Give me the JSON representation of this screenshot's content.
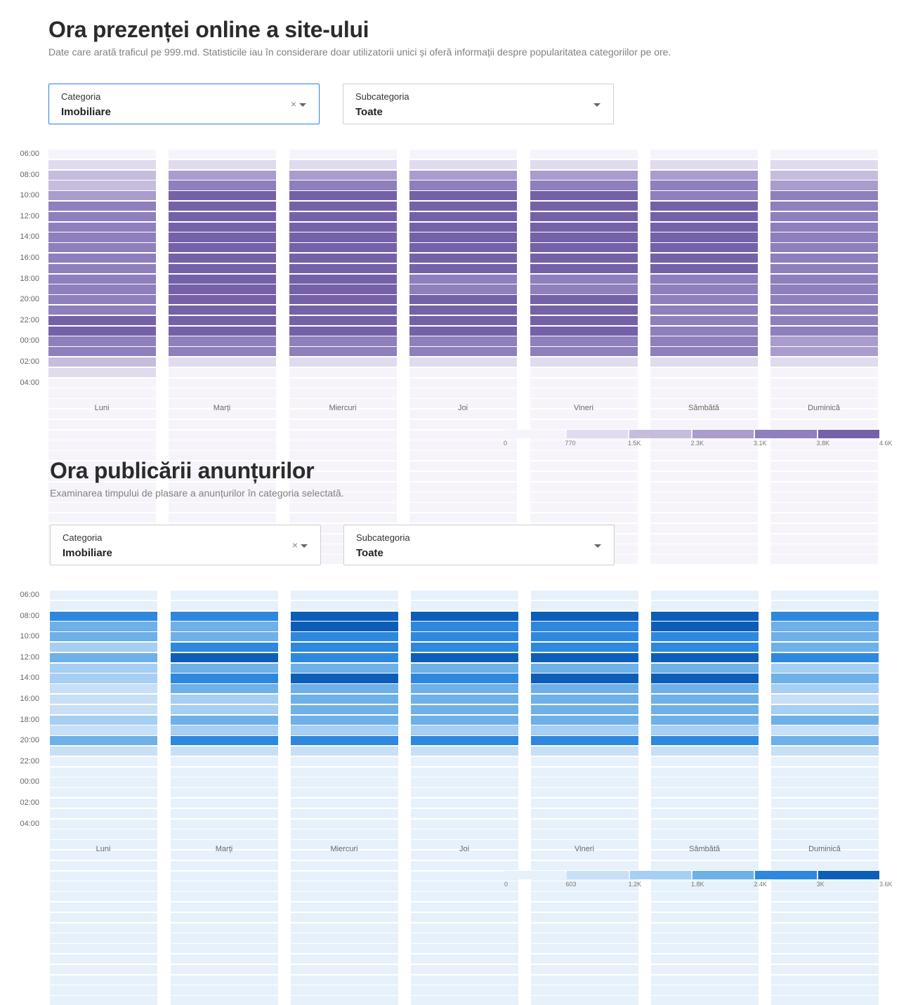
{
  "sections": [
    {
      "title": "Ora prezenței online a site-ului",
      "subtitle": "Date care arată traficul pe 999.md. Statisticile iau în considerare doar utilizatorii unici și oferă informații despre popularitatea categoriilor pe ore.",
      "category": {
        "label": "Categoria",
        "value": "Imobiliare",
        "clear_icon": "×"
      },
      "subcategory": {
        "label": "Subcategoria",
        "value": "Toate"
      },
      "hours": [
        "06:00",
        "08:00",
        "10:00",
        "12:00",
        "14:00",
        "16:00",
        "18:00",
        "20:00",
        "22:00",
        "00:00",
        "02:00",
        "04:00"
      ],
      "days": [
        "Luni",
        "Marți",
        "Miercuri",
        "Joi",
        "Vineri",
        "Sâmbătă",
        "Duminică"
      ],
      "palette": [
        "#f6f4fa",
        "#e0dbee",
        "#c6bddd",
        "#aa9ccd",
        "#8f7fbc",
        "#7561a8"
      ],
      "legend_ticks": [
        "0",
        "770",
        "1.5K",
        "2.3K",
        "3.1K",
        "3.8K",
        "4.6K"
      ],
      "grid": [
        [
          0,
          1,
          2,
          2,
          3,
          4,
          4,
          4,
          4,
          4,
          4,
          4,
          4,
          4,
          4,
          4,
          5,
          5,
          4,
          4,
          2,
          1,
          0,
          0,
          0,
          0,
          0,
          0,
          0,
          0,
          0,
          0,
          0,
          0,
          0,
          0,
          0,
          0,
          0,
          0
        ],
        [
          0,
          1,
          3,
          4,
          5,
          5,
          5,
          5,
          5,
          5,
          5,
          5,
          5,
          5,
          5,
          5,
          5,
          5,
          4,
          4,
          1,
          0,
          0,
          0,
          0,
          0,
          0,
          0,
          0,
          0,
          0,
          0,
          0,
          0,
          0,
          0,
          0,
          0,
          0,
          0
        ],
        [
          0,
          1,
          3,
          4,
          5,
          5,
          5,
          5,
          5,
          5,
          5,
          5,
          5,
          5,
          5,
          5,
          5,
          5,
          4,
          4,
          1,
          0,
          0,
          0,
          0,
          0,
          0,
          0,
          0,
          0,
          0,
          0,
          0,
          0,
          0,
          0,
          0,
          0,
          0,
          0
        ],
        [
          0,
          1,
          3,
          4,
          5,
          5,
          5,
          5,
          5,
          5,
          5,
          5,
          4,
          4,
          5,
          5,
          5,
          5,
          4,
          4,
          1,
          0,
          0,
          0,
          0,
          0,
          0,
          0,
          0,
          0,
          0,
          0,
          0,
          0,
          0,
          0,
          0,
          0,
          0,
          0
        ],
        [
          0,
          1,
          3,
          4,
          5,
          5,
          5,
          5,
          5,
          5,
          5,
          5,
          4,
          4,
          5,
          5,
          5,
          5,
          4,
          4,
          1,
          0,
          0,
          0,
          0,
          0,
          0,
          0,
          0,
          0,
          0,
          0,
          0,
          0,
          0,
          0,
          0,
          0,
          0,
          0
        ],
        [
          0,
          1,
          3,
          4,
          4,
          5,
          5,
          5,
          5,
          5,
          5,
          5,
          4,
          4,
          4,
          4,
          4,
          4,
          4,
          4,
          1,
          0,
          0,
          0,
          0,
          0,
          0,
          0,
          0,
          0,
          0,
          0,
          0,
          0,
          0,
          0,
          0,
          0,
          0,
          0
        ],
        [
          0,
          1,
          2,
          3,
          4,
          4,
          4,
          4,
          4,
          4,
          4,
          4,
          4,
          4,
          4,
          4,
          4,
          4,
          3,
          3,
          1,
          0,
          0,
          0,
          0,
          0,
          0,
          0,
          0,
          0,
          0,
          0,
          0,
          0,
          0,
          0,
          0,
          0,
          0,
          0
        ]
      ]
    },
    {
      "title": "Ora publicării anunțurilor",
      "subtitle": "Examinarea timpului de plasare a anunțurilor în categoria selectată.",
      "category": {
        "label": "Categoria",
        "value": "Imobiliare",
        "clear_icon": "×"
      },
      "subcategory": {
        "label": "Subcategoria",
        "value": "Toate"
      },
      "hours": [
        "06:00",
        "08:00",
        "10:00",
        "12:00",
        "14:00",
        "16:00",
        "18:00",
        "20:00",
        "22:00",
        "00:00",
        "02:00",
        "04:00"
      ],
      "days": [
        "Luni",
        "Marți",
        "Miercuri",
        "Joi",
        "Vineri",
        "Sâmbătă",
        "Duminică"
      ],
      "palette": [
        "#e6f1fb",
        "#c8e0f6",
        "#a5cff3",
        "#6eb0e8",
        "#2e88de",
        "#0d5eb8"
      ],
      "legend_ticks": [
        "0",
        "603",
        "1.2K",
        "1.8K",
        "2.4K",
        "3K",
        "3.6K"
      ],
      "grid": [
        [
          0,
          0,
          4,
          3,
          3,
          2,
          3,
          2,
          2,
          1,
          1,
          1,
          2,
          1,
          3,
          1,
          0,
          0,
          0,
          0,
          0,
          0,
          0,
          0,
          0,
          0,
          0,
          0,
          0,
          0,
          0,
          0,
          0,
          0,
          0,
          0,
          0,
          0,
          0,
          0
        ],
        [
          0,
          0,
          4,
          3,
          3,
          4,
          5,
          3,
          4,
          3,
          2,
          2,
          3,
          2,
          4,
          1,
          0,
          0,
          0,
          0,
          0,
          0,
          0,
          0,
          0,
          0,
          0,
          0,
          0,
          0,
          0,
          0,
          0,
          0,
          0,
          0,
          0,
          0,
          0,
          0
        ],
        [
          0,
          0,
          5,
          5,
          4,
          4,
          4,
          3,
          5,
          3,
          3,
          3,
          3,
          2,
          4,
          1,
          0,
          0,
          0,
          0,
          0,
          0,
          0,
          0,
          0,
          0,
          0,
          0,
          0,
          0,
          0,
          0,
          0,
          0,
          0,
          0,
          0,
          0,
          0,
          0
        ],
        [
          0,
          0,
          5,
          4,
          4,
          4,
          5,
          3,
          4,
          3,
          3,
          3,
          3,
          2,
          4,
          1,
          0,
          0,
          0,
          0,
          0,
          0,
          0,
          0,
          0,
          0,
          0,
          0,
          0,
          0,
          0,
          0,
          0,
          0,
          0,
          0,
          0,
          0,
          0,
          0
        ],
        [
          0,
          0,
          5,
          4,
          4,
          4,
          5,
          3,
          5,
          3,
          3,
          3,
          3,
          2,
          4,
          1,
          0,
          0,
          0,
          0,
          0,
          0,
          0,
          0,
          0,
          0,
          0,
          0,
          0,
          0,
          0,
          0,
          0,
          0,
          0,
          0,
          0,
          0,
          0,
          0
        ],
        [
          0,
          0,
          5,
          5,
          4,
          4,
          5,
          3,
          5,
          3,
          3,
          3,
          3,
          2,
          4,
          1,
          0,
          0,
          0,
          0,
          0,
          0,
          0,
          0,
          0,
          0,
          0,
          0,
          0,
          0,
          0,
          0,
          0,
          0,
          0,
          0,
          0,
          0,
          0,
          0
        ],
        [
          0,
          0,
          4,
          3,
          3,
          3,
          4,
          2,
          3,
          2,
          1,
          2,
          3,
          1,
          3,
          1,
          0,
          0,
          0,
          0,
          0,
          0,
          0,
          0,
          0,
          0,
          0,
          0,
          0,
          0,
          0,
          0,
          0,
          0,
          0,
          0,
          0,
          0,
          0,
          0
        ]
      ]
    }
  ]
}
